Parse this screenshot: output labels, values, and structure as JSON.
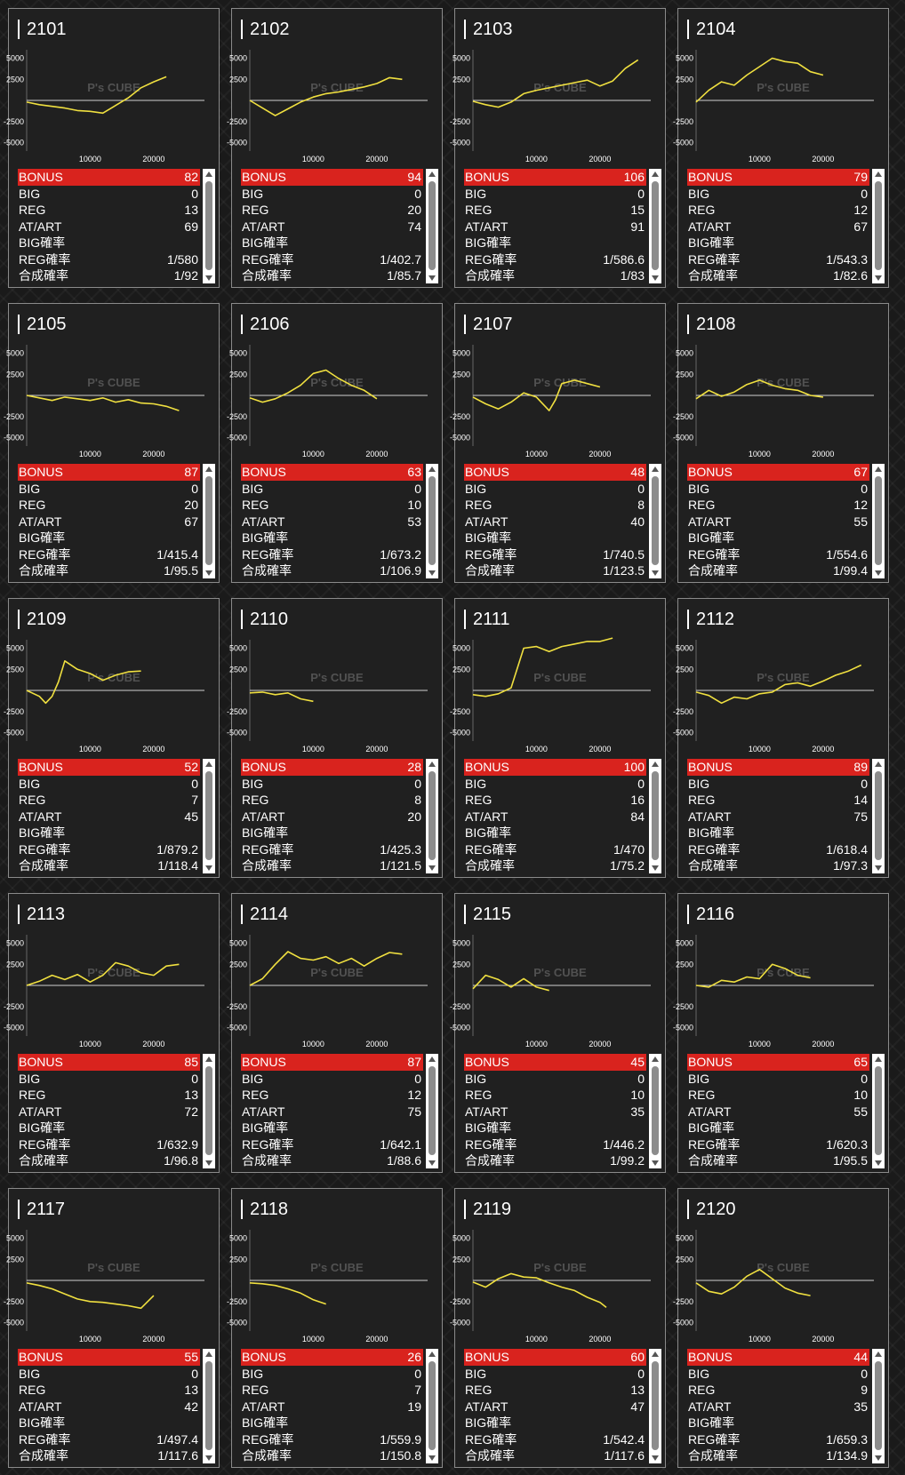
{
  "labels": {
    "bonus": "BONUS",
    "big": "BIG",
    "reg": "REG",
    "atart": "AT/ART",
    "big_rate": "BIG確率",
    "reg_rate": "REG確率",
    "total_rate": "合成確率"
  },
  "watermark": "P's CUBE",
  "colors": {
    "line": "#f0e040",
    "bonus_bar": "#d9231e",
    "card_bg": "#202020"
  },
  "chart_data": [
    {
      "type": "line",
      "title": "2101",
      "yticks": [
        "5000",
        "2500",
        "-2500",
        "-5000"
      ],
      "xticks": [
        "10000",
        "20000"
      ],
      "xlim": [
        0,
        28000
      ],
      "ylim": [
        -6000,
        6000
      ],
      "x": [
        0,
        2000,
        4000,
        6000,
        8000,
        10000,
        12000,
        14000,
        16000,
        18000,
        20000,
        22000
      ],
      "y": [
        -200,
        -500,
        -700,
        -900,
        -1200,
        -1300,
        -1500,
        -600,
        300,
        1500,
        2200,
        2800
      ]
    },
    {
      "type": "line",
      "title": "2102",
      "yticks": [
        "5000",
        "2500",
        "-2500",
        "-5000"
      ],
      "xticks": [
        "10000",
        "20000"
      ],
      "xlim": [
        0,
        28000
      ],
      "ylim": [
        -6000,
        6000
      ],
      "x": [
        0,
        2000,
        4000,
        6000,
        8000,
        10000,
        12000,
        14000,
        16000,
        18000,
        20000,
        22000,
        24000
      ],
      "y": [
        0,
        -900,
        -1800,
        -1000,
        -200,
        400,
        800,
        1000,
        1300,
        1600,
        2000,
        2700,
        2500
      ]
    },
    {
      "type": "line",
      "title": "2103",
      "yticks": [
        "5000",
        "2500",
        "-2500",
        "-5000"
      ],
      "xticks": [
        "10000",
        "20000"
      ],
      "xlim": [
        0,
        28000
      ],
      "ylim": [
        -6000,
        6000
      ],
      "x": [
        0,
        2000,
        4000,
        6000,
        8000,
        10000,
        12000,
        14000,
        16000,
        18000,
        20000,
        22000,
        24000,
        26000
      ],
      "y": [
        -100,
        -500,
        -800,
        -200,
        800,
        1200,
        1500,
        1800,
        2100,
        2400,
        1700,
        2300,
        3800,
        4800
      ]
    },
    {
      "type": "line",
      "title": "2104",
      "yticks": [
        "5000",
        "2500",
        "-2500",
        "-5000"
      ],
      "xticks": [
        "10000",
        "20000"
      ],
      "xlim": [
        0,
        28000
      ],
      "ylim": [
        -6000,
        6000
      ],
      "x": [
        0,
        2000,
        4000,
        6000,
        8000,
        10000,
        12000,
        14000,
        16000,
        18000,
        20000
      ],
      "y": [
        -200,
        1200,
        2200,
        1800,
        3000,
        4000,
        5000,
        4600,
        4400,
        3400,
        3000
      ]
    },
    {
      "type": "line",
      "title": "2105",
      "yticks": [
        "5000",
        "2500",
        "-2500",
        "-5000"
      ],
      "xticks": [
        "10000",
        "20000"
      ],
      "xlim": [
        0,
        28000
      ],
      "ylim": [
        -6000,
        6000
      ],
      "x": [
        0,
        2000,
        4000,
        6000,
        8000,
        10000,
        12000,
        14000,
        16000,
        18000,
        20000,
        22000,
        24000
      ],
      "y": [
        0,
        -300,
        -600,
        -200,
        -400,
        -600,
        -300,
        -800,
        -500,
        -900,
        -1000,
        -1300,
        -1800
      ]
    },
    {
      "type": "line",
      "title": "2106",
      "yticks": [
        "5000",
        "2500",
        "-2500",
        "-5000"
      ],
      "xticks": [
        "10000",
        "20000"
      ],
      "xlim": [
        0,
        28000
      ],
      "ylim": [
        -6000,
        6000
      ],
      "x": [
        0,
        2000,
        4000,
        6000,
        8000,
        10000,
        12000,
        14000,
        16000,
        18000,
        20000
      ],
      "y": [
        -300,
        -800,
        -400,
        300,
        1200,
        2600,
        3000,
        2000,
        1200,
        600,
        -400
      ]
    },
    {
      "type": "line",
      "title": "2107",
      "yticks": [
        "5000",
        "2500",
        "-2500",
        "-5000"
      ],
      "xticks": [
        "10000",
        "20000"
      ],
      "xlim": [
        0,
        28000
      ],
      "ylim": [
        -6000,
        6000
      ],
      "x": [
        0,
        2000,
        4000,
        6000,
        8000,
        10000,
        12000,
        13000,
        14000,
        16000,
        18000,
        20000
      ],
      "y": [
        -200,
        -1000,
        -1600,
        -800,
        300,
        -200,
        -1800,
        -500,
        1400,
        1800,
        1400,
        1000
      ]
    },
    {
      "type": "line",
      "title": "2108",
      "yticks": [
        "5000",
        "2500",
        "-2500",
        "-5000"
      ],
      "xticks": [
        "10000",
        "20000"
      ],
      "xlim": [
        0,
        28000
      ],
      "ylim": [
        -6000,
        6000
      ],
      "x": [
        0,
        2000,
        4000,
        6000,
        8000,
        10000,
        12000,
        14000,
        16000,
        18000,
        20000
      ],
      "y": [
        -400,
        600,
        -100,
        400,
        1300,
        1800,
        1200,
        800,
        600,
        0,
        -200
      ]
    },
    {
      "type": "line",
      "title": "2109",
      "yticks": [
        "5000",
        "2500",
        "-2500",
        "-5000"
      ],
      "xticks": [
        "10000",
        "20000"
      ],
      "xlim": [
        0,
        28000
      ],
      "ylim": [
        -6000,
        6000
      ],
      "x": [
        0,
        2000,
        3000,
        4000,
        5000,
        6000,
        8000,
        10000,
        12000,
        14000,
        16000,
        18000
      ],
      "y": [
        0,
        -700,
        -1500,
        -700,
        1000,
        3500,
        2500,
        2000,
        1200,
        1800,
        2200,
        2300
      ]
    },
    {
      "type": "line",
      "title": "2110",
      "yticks": [
        "5000",
        "2500",
        "-2500",
        "-5000"
      ],
      "xticks": [
        "10000",
        "20000"
      ],
      "xlim": [
        0,
        28000
      ],
      "ylim": [
        -6000,
        6000
      ],
      "x": [
        0,
        2000,
        4000,
        6000,
        8000,
        10000
      ],
      "y": [
        -300,
        -200,
        -500,
        -300,
        -1000,
        -1300
      ]
    },
    {
      "type": "line",
      "title": "2111",
      "yticks": [
        "5000",
        "2500",
        "-2500",
        "-5000"
      ],
      "xticks": [
        "10000",
        "20000"
      ],
      "xlim": [
        0,
        28000
      ],
      "ylim": [
        -6000,
        6000
      ],
      "x": [
        0,
        2000,
        4000,
        6000,
        8000,
        10000,
        12000,
        14000,
        16000,
        18000,
        20000,
        22000
      ],
      "y": [
        -500,
        -700,
        -400,
        300,
        5000,
        5200,
        4600,
        5200,
        5500,
        5800,
        5800,
        6200
      ]
    },
    {
      "type": "line",
      "title": "2112",
      "yticks": [
        "5000",
        "2500",
        "-2500",
        "-5000"
      ],
      "xticks": [
        "10000",
        "20000"
      ],
      "xlim": [
        0,
        28000
      ],
      "ylim": [
        -6000,
        6000
      ],
      "x": [
        0,
        2000,
        4000,
        6000,
        8000,
        10000,
        12000,
        14000,
        16000,
        18000,
        20000,
        22000,
        24000,
        26000
      ],
      "y": [
        -200,
        -600,
        -1500,
        -800,
        -1000,
        -400,
        -200,
        700,
        900,
        500,
        1100,
        1800,
        2300,
        3000
      ]
    },
    {
      "type": "line",
      "title": "2113",
      "yticks": [
        "5000",
        "2500",
        "-2500",
        "-5000"
      ],
      "xticks": [
        "10000",
        "20000"
      ],
      "xlim": [
        0,
        28000
      ],
      "ylim": [
        -6000,
        6000
      ],
      "x": [
        0,
        2000,
        4000,
        6000,
        8000,
        10000,
        12000,
        14000,
        16000,
        18000,
        20000,
        22000,
        24000
      ],
      "y": [
        0,
        500,
        1200,
        700,
        1300,
        400,
        1200,
        2700,
        2300,
        1500,
        1200,
        2300,
        2500
      ]
    },
    {
      "type": "line",
      "title": "2114",
      "yticks": [
        "5000",
        "2500",
        "-2500",
        "-5000"
      ],
      "xticks": [
        "10000",
        "20000"
      ],
      "xlim": [
        0,
        28000
      ],
      "ylim": [
        -6000,
        6000
      ],
      "x": [
        0,
        2000,
        4000,
        6000,
        8000,
        10000,
        12000,
        14000,
        16000,
        18000,
        20000,
        22000,
        24000
      ],
      "y": [
        0,
        800,
        2500,
        4000,
        3200,
        3000,
        3400,
        2600,
        3200,
        2300,
        3200,
        3900,
        3700
      ]
    },
    {
      "type": "line",
      "title": "2115",
      "yticks": [
        "5000",
        "2500",
        "-2500",
        "-5000"
      ],
      "xticks": [
        "10000",
        "20000"
      ],
      "xlim": [
        0,
        28000
      ],
      "ylim": [
        -6000,
        6000
      ],
      "x": [
        0,
        2000,
        4000,
        6000,
        8000,
        10000,
        12000
      ],
      "y": [
        -400,
        1200,
        700,
        -200,
        800,
        -200,
        -600
      ]
    },
    {
      "type": "line",
      "title": "2116",
      "yticks": [
        "5000",
        "2500",
        "-2500",
        "-5000"
      ],
      "xticks": [
        "10000",
        "20000"
      ],
      "xlim": [
        0,
        28000
      ],
      "ylim": [
        -6000,
        6000
      ],
      "x": [
        0,
        2000,
        4000,
        6000,
        8000,
        10000,
        12000,
        14000,
        16000,
        18000
      ],
      "y": [
        0,
        -200,
        600,
        400,
        1000,
        800,
        2500,
        2000,
        1200,
        900
      ]
    },
    {
      "type": "line",
      "title": "2117",
      "yticks": [
        "5000",
        "2500",
        "-2500",
        "-5000"
      ],
      "xticks": [
        "10000",
        "20000"
      ],
      "xlim": [
        0,
        28000
      ],
      "ylim": [
        -6000,
        6000
      ],
      "x": [
        0,
        2000,
        4000,
        6000,
        8000,
        10000,
        12000,
        14000,
        16000,
        18000,
        20000
      ],
      "y": [
        -300,
        -600,
        -1000,
        -1600,
        -2200,
        -2500,
        -2600,
        -2800,
        -3000,
        -3300,
        -1800
      ]
    },
    {
      "type": "line",
      "title": "2118",
      "yticks": [
        "5000",
        "2500",
        "-2500",
        "-5000"
      ],
      "xticks": [
        "10000",
        "20000"
      ],
      "xlim": [
        0,
        28000
      ],
      "ylim": [
        -6000,
        6000
      ],
      "x": [
        0,
        2000,
        4000,
        6000,
        8000,
        10000,
        12000
      ],
      "y": [
        -300,
        -400,
        -600,
        -1000,
        -1500,
        -2300,
        -2800
      ]
    },
    {
      "type": "line",
      "title": "2119",
      "yticks": [
        "5000",
        "2500",
        "-2500",
        "-5000"
      ],
      "xticks": [
        "10000",
        "20000"
      ],
      "xlim": [
        0,
        28000
      ],
      "ylim": [
        -6000,
        6000
      ],
      "x": [
        0,
        2000,
        4000,
        6000,
        8000,
        10000,
        12000,
        14000,
        16000,
        18000,
        20000,
        21000
      ],
      "y": [
        -200,
        -800,
        200,
        800,
        400,
        300,
        -300,
        -800,
        -1200,
        -2000,
        -2600,
        -3200
      ]
    },
    {
      "type": "line",
      "title": "2120",
      "yticks": [
        "5000",
        "2500",
        "-2500",
        "-5000"
      ],
      "xticks": [
        "10000",
        "20000"
      ],
      "xlim": [
        0,
        28000
      ],
      "ylim": [
        -6000,
        6000
      ],
      "x": [
        0,
        2000,
        4000,
        6000,
        8000,
        10000,
        12000,
        14000,
        16000,
        18000
      ],
      "y": [
        -300,
        -1300,
        -1600,
        -800,
        500,
        1300,
        200,
        -900,
        -1500,
        -1800
      ]
    }
  ],
  "machines": [
    {
      "id": "2101",
      "bonus": "82",
      "big": "0",
      "reg": "13",
      "atart": "69",
      "big_rate": "",
      "reg_rate": "1/580",
      "total_rate": "1/92"
    },
    {
      "id": "2102",
      "bonus": "94",
      "big": "0",
      "reg": "20",
      "atart": "74",
      "big_rate": "",
      "reg_rate": "1/402.7",
      "total_rate": "1/85.7"
    },
    {
      "id": "2103",
      "bonus": "106",
      "big": "0",
      "reg": "15",
      "atart": "91",
      "big_rate": "",
      "reg_rate": "1/586.6",
      "total_rate": "1/83"
    },
    {
      "id": "2104",
      "bonus": "79",
      "big": "0",
      "reg": "12",
      "atart": "67",
      "big_rate": "",
      "reg_rate": "1/543.3",
      "total_rate": "1/82.6"
    },
    {
      "id": "2105",
      "bonus": "87",
      "big": "0",
      "reg": "20",
      "atart": "67",
      "big_rate": "",
      "reg_rate": "1/415.4",
      "total_rate": "1/95.5"
    },
    {
      "id": "2106",
      "bonus": "63",
      "big": "0",
      "reg": "10",
      "atart": "53",
      "big_rate": "",
      "reg_rate": "1/673.2",
      "total_rate": "1/106.9"
    },
    {
      "id": "2107",
      "bonus": "48",
      "big": "0",
      "reg": "8",
      "atart": "40",
      "big_rate": "",
      "reg_rate": "1/740.5",
      "total_rate": "1/123.5"
    },
    {
      "id": "2108",
      "bonus": "67",
      "big": "0",
      "reg": "12",
      "atart": "55",
      "big_rate": "",
      "reg_rate": "1/554.6",
      "total_rate": "1/99.4"
    },
    {
      "id": "2109",
      "bonus": "52",
      "big": "0",
      "reg": "7",
      "atart": "45",
      "big_rate": "",
      "reg_rate": "1/879.2",
      "total_rate": "1/118.4"
    },
    {
      "id": "2110",
      "bonus": "28",
      "big": "0",
      "reg": "8",
      "atart": "20",
      "big_rate": "",
      "reg_rate": "1/425.3",
      "total_rate": "1/121.5"
    },
    {
      "id": "2111",
      "bonus": "100",
      "big": "0",
      "reg": "16",
      "atart": "84",
      "big_rate": "",
      "reg_rate": "1/470",
      "total_rate": "1/75.2"
    },
    {
      "id": "2112",
      "bonus": "89",
      "big": "0",
      "reg": "14",
      "atart": "75",
      "big_rate": "",
      "reg_rate": "1/618.4",
      "total_rate": "1/97.3"
    },
    {
      "id": "2113",
      "bonus": "85",
      "big": "0",
      "reg": "13",
      "atart": "72",
      "big_rate": "",
      "reg_rate": "1/632.9",
      "total_rate": "1/96.8"
    },
    {
      "id": "2114",
      "bonus": "87",
      "big": "0",
      "reg": "12",
      "atart": "75",
      "big_rate": "",
      "reg_rate": "1/642.1",
      "total_rate": "1/88.6"
    },
    {
      "id": "2115",
      "bonus": "45",
      "big": "0",
      "reg": "10",
      "atart": "35",
      "big_rate": "",
      "reg_rate": "1/446.2",
      "total_rate": "1/99.2"
    },
    {
      "id": "2116",
      "bonus": "65",
      "big": "0",
      "reg": "10",
      "atart": "55",
      "big_rate": "",
      "reg_rate": "1/620.3",
      "total_rate": "1/95.5"
    },
    {
      "id": "2117",
      "bonus": "55",
      "big": "0",
      "reg": "13",
      "atart": "42",
      "big_rate": "",
      "reg_rate": "1/497.4",
      "total_rate": "1/117.6"
    },
    {
      "id": "2118",
      "bonus": "26",
      "big": "0",
      "reg": "7",
      "atart": "19",
      "big_rate": "",
      "reg_rate": "1/559.9",
      "total_rate": "1/150.8"
    },
    {
      "id": "2119",
      "bonus": "60",
      "big": "0",
      "reg": "13",
      "atart": "47",
      "big_rate": "",
      "reg_rate": "1/542.4",
      "total_rate": "1/117.6"
    },
    {
      "id": "2120",
      "bonus": "44",
      "big": "0",
      "reg": "9",
      "atart": "35",
      "big_rate": "",
      "reg_rate": "1/659.3",
      "total_rate": "1/134.9"
    }
  ]
}
